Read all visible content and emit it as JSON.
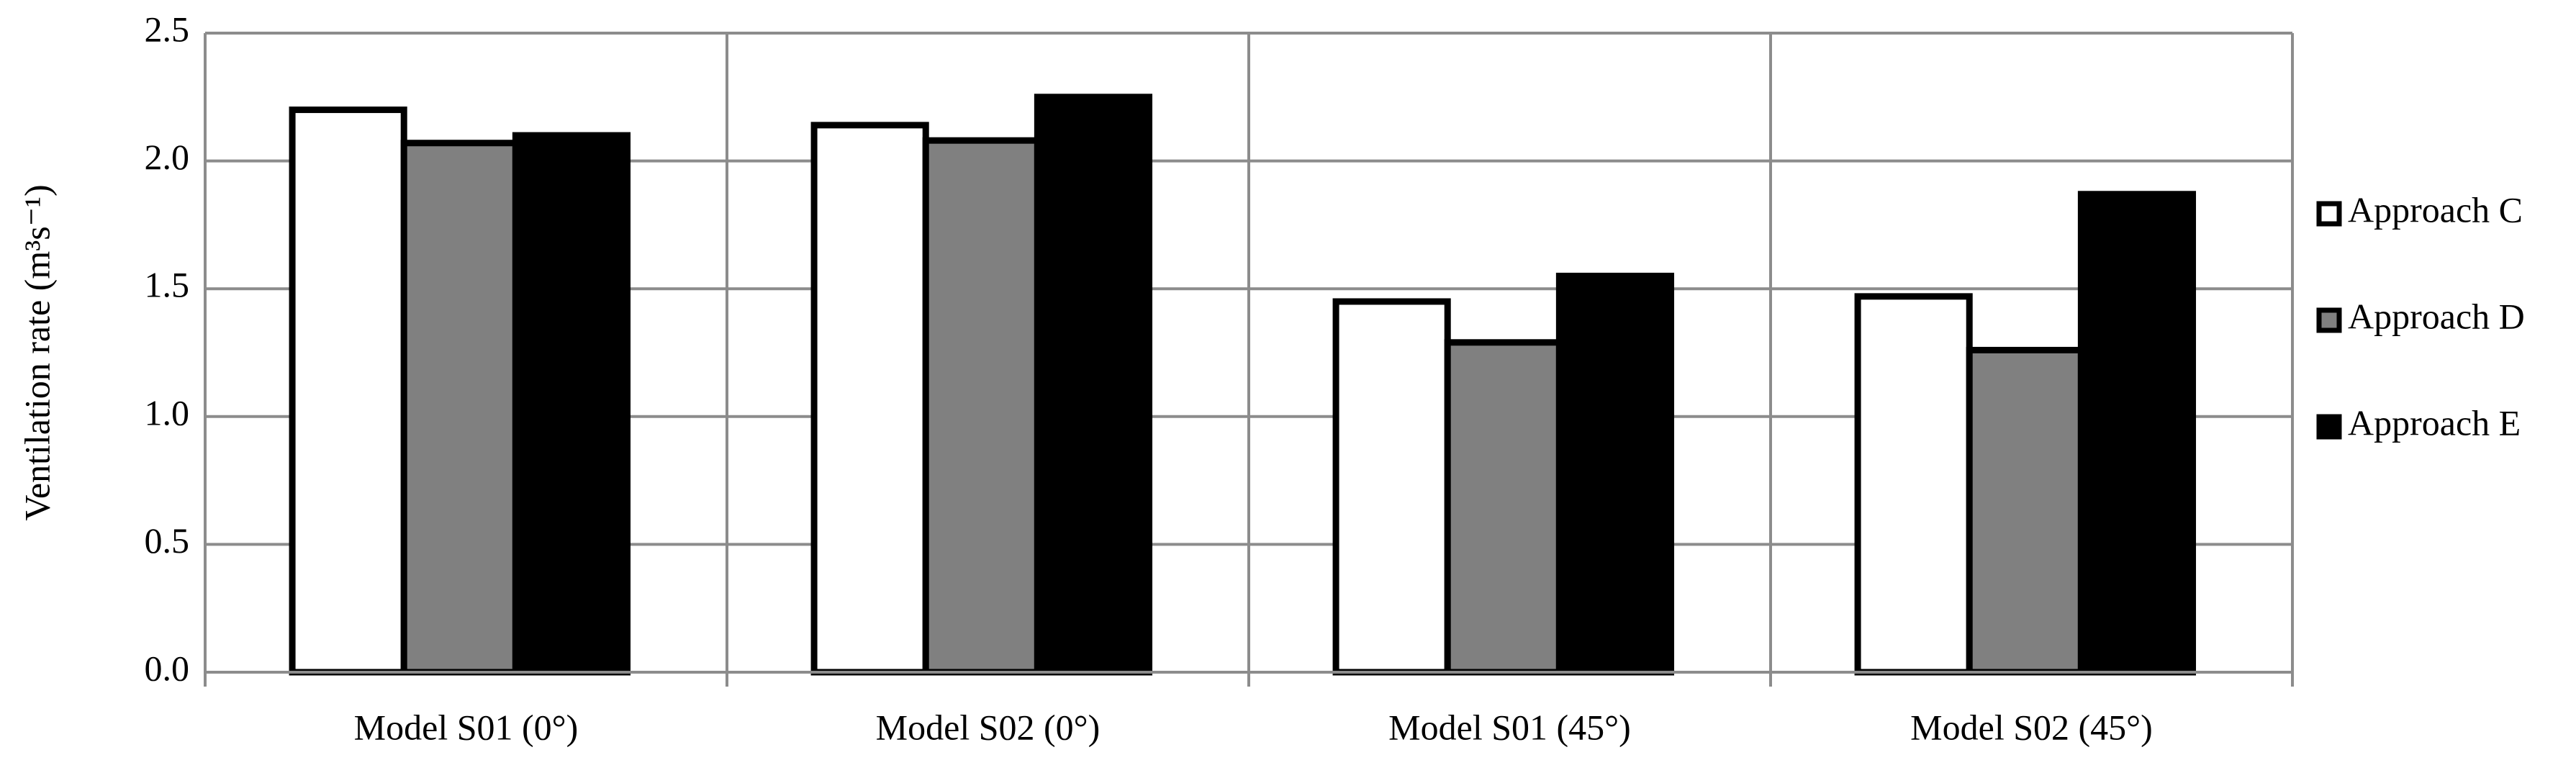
{
  "chart_data": {
    "type": "bar",
    "y_label": "Ventilation rate (m³s⁻¹)",
    "categories": [
      "Model S01 (0°)",
      "Model S02 (0°)",
      "Model S01 (45°)",
      "Model S02 (45°)"
    ],
    "series": [
      {
        "name": "Approach C",
        "color": "#ffffff",
        "values": [
          2.2,
          2.14,
          1.45,
          1.47
        ]
      },
      {
        "name": "Approach D",
        "color": "#808080",
        "values": [
          2.07,
          2.08,
          1.29,
          1.26
        ]
      },
      {
        "name": "Approach E",
        "color": "#000000",
        "values": [
          2.1,
          2.25,
          1.55,
          1.87
        ]
      }
    ],
    "ylim": [
      0,
      2.5
    ],
    "yticks": [
      {
        "value": 0,
        "label": "0.0"
      },
      0.5,
      {
        "value": 1,
        "label": "1.0"
      },
      1.5,
      {
        "value": 2,
        "label": "2.0"
      },
      2.5
    ],
    "grid": true,
    "legend": "right"
  }
}
